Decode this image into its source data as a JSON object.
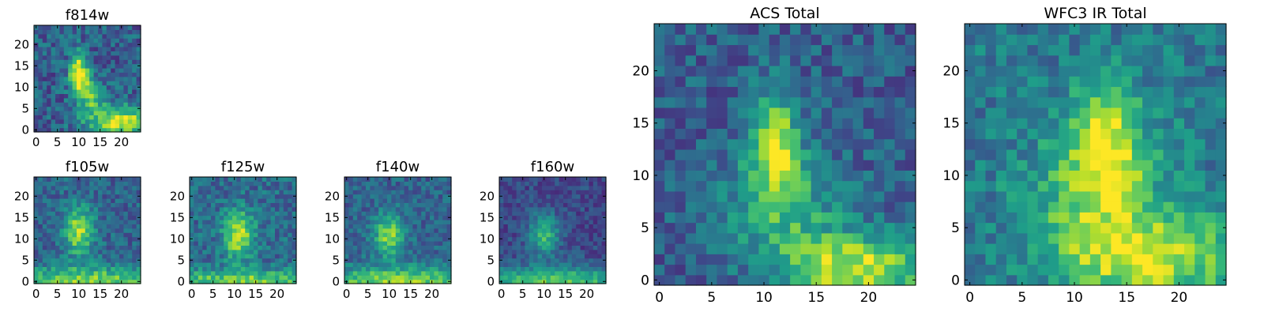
{
  "chart_data": [
    {
      "type": "heatmap",
      "title": "f814w",
      "xticks": [
        "0",
        "5",
        "10",
        "15",
        "20"
      ],
      "yticks": [
        "0",
        "5",
        "10",
        "15",
        "20"
      ],
      "xlim": [
        -0.5,
        24.5
      ],
      "ylim": [
        -0.5,
        24.5
      ],
      "grid": false,
      "description": "25x25 pixel cutout; bright diagonal feature near x~10,y~12 and bright patch at lower right",
      "features": [
        {
          "cx": 10,
          "cy": 13,
          "sx": 1.5,
          "sy": 3.5,
          "amp": 0.75
        },
        {
          "cx": 20,
          "cy": 2,
          "sx": 5.5,
          "sy": 2.5,
          "amp": 0.65
        },
        {
          "cx": 13,
          "cy": 8,
          "sx": 2,
          "sy": 3,
          "amp": 0.4
        }
      ],
      "base": 0.3,
      "noise": 0.34,
      "seed": 11
    },
    {
      "type": "heatmap",
      "title": "f105w",
      "xticks": [
        "0",
        "5",
        "10",
        "15",
        "20"
      ],
      "yticks": [
        "0",
        "5",
        "10",
        "15",
        "20"
      ],
      "xlim": [
        -0.5,
        24.5
      ],
      "ylim": [
        -0.5,
        24.5
      ],
      "grid": false,
      "features": [
        {
          "cx": 10,
          "cy": 12,
          "sx": 2.5,
          "sy": 4,
          "amp": 0.55
        },
        {
          "cx": 12,
          "cy": 0,
          "sx": 14,
          "sy": 2.5,
          "amp": 0.5
        }
      ],
      "base": 0.32,
      "noise": 0.28,
      "seed": 23
    },
    {
      "type": "heatmap",
      "title": "f125w",
      "xticks": [
        "0",
        "5",
        "10",
        "15",
        "20"
      ],
      "yticks": [
        "0",
        "5",
        "10",
        "15",
        "20"
      ],
      "xlim": [
        -0.5,
        24.5
      ],
      "ylim": [
        -0.5,
        24.5
      ],
      "grid": false,
      "features": [
        {
          "cx": 11,
          "cy": 11,
          "sx": 2.5,
          "sy": 4,
          "amp": 0.55
        },
        {
          "cx": 12,
          "cy": 0,
          "sx": 14,
          "sy": 2,
          "amp": 0.45
        }
      ],
      "base": 0.35,
      "noise": 0.3,
      "seed": 37
    },
    {
      "type": "heatmap",
      "title": "f140w",
      "xticks": [
        "0",
        "5",
        "10",
        "15",
        "20"
      ],
      "yticks": [
        "0",
        "5",
        "10",
        "15",
        "20"
      ],
      "xlim": [
        -0.5,
        24.5
      ],
      "ylim": [
        -0.5,
        24.5
      ],
      "grid": false,
      "features": [
        {
          "cx": 10,
          "cy": 11,
          "sx": 2.5,
          "sy": 3.5,
          "amp": 0.5
        },
        {
          "cx": 12,
          "cy": 0,
          "sx": 14,
          "sy": 2.5,
          "amp": 0.5
        }
      ],
      "base": 0.32,
      "noise": 0.26,
      "seed": 41
    },
    {
      "type": "heatmap",
      "title": "f160w",
      "xticks": [
        "0",
        "5",
        "10",
        "15",
        "20"
      ],
      "yticks": [
        "0",
        "5",
        "10",
        "15",
        "20"
      ],
      "xlim": [
        -0.5,
        24.5
      ],
      "ylim": [
        -0.5,
        24.5
      ],
      "grid": false,
      "features": [
        {
          "cx": 10,
          "cy": 11,
          "sx": 2.5,
          "sy": 3.5,
          "amp": 0.45
        },
        {
          "cx": 12,
          "cy": 0,
          "sx": 14,
          "sy": 2.5,
          "amp": 0.55
        }
      ],
      "base": 0.22,
      "noise": 0.22,
      "seed": 53
    },
    {
      "type": "heatmap",
      "title": "ACS Total",
      "xticks": [
        "0",
        "5",
        "10",
        "15",
        "20"
      ],
      "yticks": [
        "0",
        "5",
        "10",
        "15",
        "20"
      ],
      "xlim": [
        -0.5,
        24.5
      ],
      "ylim": [
        -0.5,
        24.5
      ],
      "grid": false,
      "features": [
        {
          "cx": 11,
          "cy": 13,
          "sx": 1.6,
          "sy": 3.5,
          "amp": 0.6
        },
        {
          "cx": 19,
          "cy": 1,
          "sx": 5,
          "sy": 2.5,
          "amp": 0.6
        },
        {
          "cx": 12,
          "cy": 7,
          "sx": 4,
          "sy": 4,
          "amp": 0.3
        }
      ],
      "base": 0.3,
      "noise": 0.3,
      "seed": 67
    },
    {
      "type": "heatmap",
      "title": "WFC3 IR Total",
      "xticks": [
        "0",
        "5",
        "10",
        "15",
        "20"
      ],
      "yticks": [
        "0",
        "5",
        "10",
        "15",
        "20"
      ],
      "xlim": [
        -0.5,
        24.5
      ],
      "ylim": [
        -0.5,
        24.5
      ],
      "grid": false,
      "features": [
        {
          "cx": 13,
          "cy": 13,
          "sx": 2.5,
          "sy": 4,
          "amp": 0.5
        },
        {
          "cx": 18,
          "cy": 2,
          "sx": 6,
          "sy": 3,
          "amp": 0.45
        },
        {
          "cx": 12,
          "cy": 7,
          "sx": 5,
          "sy": 5,
          "amp": 0.3
        }
      ],
      "base": 0.4,
      "noise": 0.3,
      "seed": 79
    }
  ],
  "colormap": [
    "#440154",
    "#482878",
    "#3e4989",
    "#31688e",
    "#26828e",
    "#1f9e89",
    "#35b779",
    "#6ece58",
    "#b5de2b",
    "#fde725"
  ]
}
